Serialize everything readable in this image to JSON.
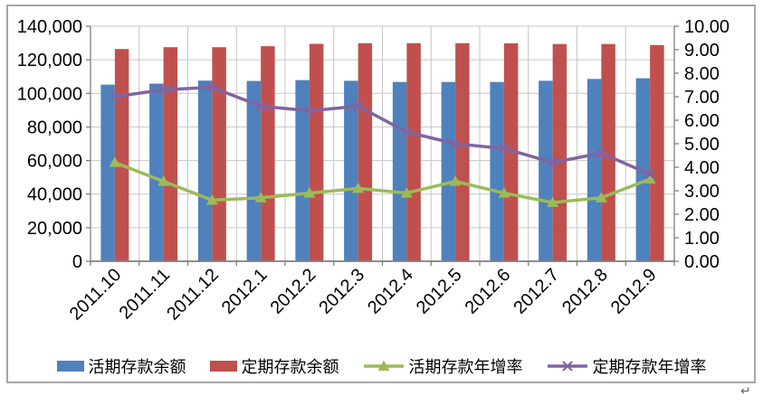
{
  "chart_data": {
    "type": "combo_bar_line",
    "categories": [
      "2011.10",
      "2011.11",
      "2011.12",
      "2012.1",
      "2012.2",
      "2012.3",
      "2012.4",
      "2012.5",
      "2012.6",
      "2012.7",
      "2012.8",
      "2012.9"
    ],
    "series": [
      {
        "key": "demand_balance",
        "name": "活期存款余额",
        "type": "bar",
        "axis": "left",
        "color": "#4F81BD",
        "values": [
          105200,
          105800,
          107600,
          107400,
          107900,
          107500,
          106800,
          106800,
          106800,
          107500,
          108600,
          109000
        ]
      },
      {
        "key": "time_balance",
        "name": "定期存款余额",
        "type": "bar",
        "axis": "left",
        "color": "#C0504D",
        "values": [
          126400,
          127500,
          127500,
          128100,
          129500,
          129900,
          129900,
          129900,
          129800,
          129400,
          129400,
          128800
        ]
      },
      {
        "key": "demand_growth",
        "name": "活期存款年增率",
        "type": "line",
        "marker": "triangle",
        "axis": "right",
        "color": "#9BBB59",
        "values": [
          4.2,
          3.4,
          2.6,
          2.7,
          2.9,
          3.1,
          2.9,
          3.4,
          2.9,
          2.5,
          2.7,
          3.5
        ]
      },
      {
        "key": "time_growth",
        "name": "定期存款年增率",
        "type": "line",
        "marker": "x",
        "axis": "right",
        "color": "#8064A2",
        "values": [
          7.0,
          7.3,
          7.4,
          6.6,
          6.4,
          6.6,
          5.5,
          5.0,
          4.8,
          4.2,
          4.6,
          3.7
        ]
      }
    ],
    "left_axis": {
      "min": 0,
      "max": 140000,
      "step": 20000,
      "tick_labels": [
        "140,000",
        "120,000",
        "100,000",
        "80,000",
        "60,000",
        "40,000",
        "20,000",
        "0"
      ]
    },
    "right_axis": {
      "min": 0,
      "max": 10,
      "step": 1,
      "tick_labels": [
        "10.00",
        "9.00",
        "8.00",
        "7.00",
        "6.00",
        "5.00",
        "4.00",
        "3.00",
        "2.00",
        "1.00",
        "0.00"
      ]
    },
    "grid": {
      "horizontal": true,
      "vertical": true
    },
    "legend_position": "bottom"
  },
  "page": {
    "corner_mark": "↵"
  },
  "colors": {
    "background": "#FFFFFF",
    "frame_border": "#A6A6A6",
    "gridline": "#C6C6C6",
    "axis": "#7F7F7F",
    "text": "#000000"
  }
}
